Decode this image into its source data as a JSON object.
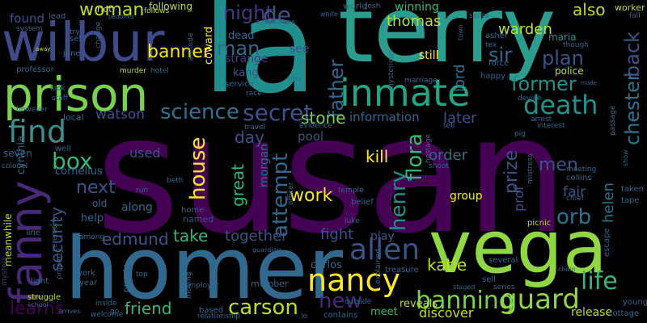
{
  "background": "#000000",
  "palette": {
    "purple": "#440154",
    "indigo": "#3b528b",
    "blue": "#31688e",
    "teal": "#21918c",
    "green": "#35b779",
    "lime": "#90d743",
    "yellow": "#fde725"
  },
  "words": [
    {
      "text": "susan",
      "color": "#440154"
    },
    {
      "text": "terry",
      "color": "#2a9d8f"
    },
    {
      "text": "la",
      "color": "#218f8d"
    },
    {
      "text": "homer",
      "color": "#31688e"
    },
    {
      "text": "vega",
      "color": "#90d743"
    },
    {
      "text": "wilbur",
      "color": "#3e4a89"
    },
    {
      "text": "prison",
      "color": "#7ad151"
    },
    {
      "text": "inmate",
      "color": "#21a585"
    },
    {
      "text": "fanny",
      "color": "#482878"
    },
    {
      "text": "nancy",
      "color": "#fde725"
    },
    {
      "text": "find",
      "color": "#3b8e8c"
    },
    {
      "text": "death",
      "color": "#21918c"
    },
    {
      "text": "secret",
      "color": "#3b528b"
    },
    {
      "text": "science",
      "color": "#2c728e"
    },
    {
      "text": "allen",
      "color": "#3b528b"
    },
    {
      "text": "banning",
      "color": "#7ad151"
    },
    {
      "text": "guard",
      "color": "#90d743"
    },
    {
      "text": "life",
      "color": "#35b779"
    },
    {
      "text": "carson",
      "color": "#bddf26"
    },
    {
      "text": "house",
      "color": "#fde725"
    },
    {
      "text": "box",
      "color": "#35b779"
    },
    {
      "text": "orb",
      "color": "#2c728e"
    },
    {
      "text": "attempt",
      "color": "#31688e"
    },
    {
      "text": "henry",
      "color": "#21918c"
    },
    {
      "text": "flora",
      "color": "#35b779"
    },
    {
      "text": "chester",
      "color": "#2c728e"
    },
    {
      "text": "back",
      "color": "#3b528b"
    },
    {
      "text": "man",
      "color": "#31688e"
    },
    {
      "text": "night",
      "color": "#443983"
    },
    {
      "text": "de",
      "color": "#3b528b"
    },
    {
      "text": "banner",
      "color": "#fde725"
    },
    {
      "text": "woman",
      "color": "#bddf26"
    },
    {
      "text": "father",
      "color": "#31688e"
    },
    {
      "text": "former",
      "color": "#21918c"
    },
    {
      "text": "plan",
      "color": "#3b528b"
    },
    {
      "text": "sir",
      "color": "#31688e"
    },
    {
      "text": "also",
      "color": "#bddf26"
    },
    {
      "text": "warden",
      "color": "#bddf26"
    },
    {
      "text": "thomas",
      "color": "#bddf26"
    },
    {
      "text": "winning",
      "color": "#35b779"
    },
    {
      "text": "maria",
      "color": "#21918c"
    },
    {
      "text": "worker",
      "color": "#bddf26"
    },
    {
      "text": "helen",
      "color": "#2c728e"
    },
    {
      "text": "learns",
      "color": "#440154"
    },
    {
      "text": "edmund",
      "color": "#3b528b"
    },
    {
      "text": "take",
      "color": "#35b779"
    },
    {
      "text": "together",
      "color": "#3b528b"
    },
    {
      "text": "friend",
      "color": "#35b779"
    },
    {
      "text": "next",
      "color": "#3b528b"
    },
    {
      "text": "security",
      "color": "#3b528b"
    },
    {
      "text": "work",
      "color": "#fde725"
    },
    {
      "text": "fight",
      "color": "#3b528b"
    },
    {
      "text": "new",
      "color": "#482878"
    },
    {
      "text": "katie",
      "color": "#bddf26"
    },
    {
      "text": "prize",
      "color": "#3b528b"
    },
    {
      "text": "kill",
      "color": "#fde725"
    },
    {
      "text": "order",
      "color": "#31688e"
    },
    {
      "text": "men",
      "color": "#3b528b"
    },
    {
      "text": "great",
      "color": "#35b779"
    },
    {
      "text": "stone",
      "color": "#7ad151"
    },
    {
      "text": "information",
      "color": "#31688e"
    },
    {
      "text": "later",
      "color": "#3b528b"
    },
    {
      "text": "watson",
      "color": "#3b528b"
    },
    {
      "text": "day",
      "color": "#3b528b"
    },
    {
      "text": "used",
      "color": "#3b528b"
    },
    {
      "text": "pool",
      "color": "#3b528b"
    },
    {
      "text": "fair",
      "color": "#3b528b"
    },
    {
      "text": "prof",
      "color": "#3b528b"
    },
    {
      "text": "group",
      "color": "#fde725"
    },
    {
      "text": "play",
      "color": "#3b528b"
    },
    {
      "text": "found",
      "color": "#3b528b"
    },
    {
      "text": "lord",
      "color": "#2c728e"
    },
    {
      "text": "still",
      "color": "#fde725"
    },
    {
      "text": "dead",
      "color": "#31688e"
    },
    {
      "text": "strange",
      "color": "#443983"
    },
    {
      "text": "see",
      "color": "#3b528b"
    },
    {
      "text": "kang",
      "color": "#3b528b"
    },
    {
      "text": "coward",
      "color": "#fde725"
    },
    {
      "text": "cornelius",
      "color": "#31688e"
    },
    {
      "text": "cynthia",
      "color": "#31688e"
    },
    {
      "text": "morgan",
      "color": "#2c728e"
    },
    {
      "text": "along",
      "color": "#31688e"
    },
    {
      "text": "named",
      "color": "#3b528b"
    },
    {
      "text": "help",
      "color": "#31688e"
    },
    {
      "text": "old",
      "color": "#31688e"
    },
    {
      "text": "seven",
      "color": "#31688e"
    },
    {
      "text": "following",
      "color": "#bddf26"
    },
    {
      "text": "riot",
      "color": "#bddf26"
    },
    {
      "text": "lead",
      "color": "#31688e"
    },
    {
      "text": "system",
      "color": "#31688e"
    },
    {
      "text": "professor",
      "color": "#31688e"
    },
    {
      "text": "murder",
      "color": "#bddf26"
    },
    {
      "text": "hotel",
      "color": "#31688e"
    },
    {
      "text": "june",
      "color": "#31688e"
    },
    {
      "text": "set",
      "color": "#31688e"
    },
    {
      "text": "try",
      "color": "#31688e"
    },
    {
      "text": "local",
      "color": "#31688e"
    },
    {
      "text": "well",
      "color": "#31688e"
    },
    {
      "text": "meanwhile",
      "color": "#bddf26"
    },
    {
      "text": "mystery",
      "color": "#443983"
    },
    {
      "text": "light",
      "color": "#31688e"
    },
    {
      "text": "struggle",
      "color": "#bddf26"
    },
    {
      "text": "line",
      "color": "#31688e"
    },
    {
      "text": "among",
      "color": "#31688e"
    },
    {
      "text": "york",
      "color": "#31688e"
    },
    {
      "text": "year",
      "color": "#31688e"
    },
    {
      "text": "private",
      "color": "#31688e"
    },
    {
      "text": "inside",
      "color": "#31688e"
    },
    {
      "text": "welcome",
      "color": "#31688e"
    },
    {
      "text": "moving",
      "color": "#31688e"
    },
    {
      "text": "based",
      "color": "#31688e"
    },
    {
      "text": "relationship",
      "color": "#31688e"
    },
    {
      "text": "member",
      "color": "#31688e"
    },
    {
      "text": "carlos",
      "color": "#31688e"
    },
    {
      "text": "treasure",
      "color": "#31688e"
    },
    {
      "text": "meet",
      "color": "#35b779"
    },
    {
      "text": "reveals",
      "color": "#bddf26"
    },
    {
      "text": "discover",
      "color": "#bddf26"
    },
    {
      "text": "contains",
      "color": "#31688e"
    },
    {
      "text": "lo",
      "color": "#31688e"
    },
    {
      "text": "sell",
      "color": "#31688e"
    },
    {
      "text": "series",
      "color": "#31688e"
    },
    {
      "text": "several",
      "color": "#31688e"
    },
    {
      "text": "release",
      "color": "#bddf26"
    },
    {
      "text": "cottage",
      "color": "#31688e"
    },
    {
      "text": "young",
      "color": "#31688e"
    },
    {
      "text": "escape",
      "color": "#31688e"
    },
    {
      "text": "taken",
      "color": "#31688e"
    },
    {
      "text": "tape",
      "color": "#31688e"
    },
    {
      "text": "collins",
      "color": "#31688e"
    },
    {
      "text": "picnic",
      "color": "#bddf26"
    },
    {
      "text": "belief",
      "color": "#31688e"
    },
    {
      "text": "luke",
      "color": "#31688e"
    },
    {
      "text": "temple",
      "color": "#31688e"
    },
    {
      "text": "shoot",
      "color": "#31688e"
    },
    {
      "text": "officer",
      "color": "#31688e"
    },
    {
      "text": "beth",
      "color": "#31688e"
    },
    {
      "text": "run",
      "color": "#31688e"
    },
    {
      "text": "home",
      "color": "#31688e"
    },
    {
      "text": "chief",
      "color": "#31688e"
    },
    {
      "text": "arrest",
      "color": "#31688e"
    },
    {
      "text": "passage",
      "color": "#31688e"
    },
    {
      "text": "race",
      "color": "#31688e"
    },
    {
      "text": "service",
      "color": "#31688e"
    },
    {
      "text": "marriage",
      "color": "#31688e"
    },
    {
      "text": "happy",
      "color": "#31688e"
    },
    {
      "text": "police",
      "color": "#bddf26"
    },
    {
      "text": "force",
      "color": "#31688e"
    },
    {
      "text": "asher",
      "color": "#31688e"
    },
    {
      "text": "tex",
      "color": "#31688e"
    },
    {
      "text": "world",
      "color": "#31688e"
    },
    {
      "text": "josh",
      "color": "#31688e"
    },
    {
      "text": "santa",
      "color": "#31688e"
    },
    {
      "text": "fall",
      "color": "#31688e"
    },
    {
      "text": "announces",
      "color": "#31688e"
    },
    {
      "text": "white",
      "color": "#31688e"
    },
    {
      "text": "follows",
      "color": "#bddf26"
    },
    {
      "text": "travel",
      "color": "#31688e"
    },
    {
      "text": "evidence",
      "color": "#31688e"
    },
    {
      "text": "tell",
      "color": "#31688e"
    },
    {
      "text": "interest",
      "color": "#31688e"
    },
    {
      "text": "mysterious",
      "color": "#31688e"
    },
    {
      "text": "copy",
      "color": "#31688e"
    },
    {
      "text": "staff",
      "color": "#31688e"
    },
    {
      "text": "however",
      "color": "#31688e"
    },
    {
      "text": "look",
      "color": "#31688e"
    },
    {
      "text": "ceremony",
      "color": "#31688e"
    },
    {
      "text": "property",
      "color": "#31688e"
    },
    {
      "text": "colonel",
      "color": "#31688e"
    },
    {
      "text": "school",
      "color": "#31688e"
    },
    {
      "text": "arrives",
      "color": "#31688e"
    },
    {
      "text": "guardian",
      "color": "#31688e"
    },
    {
      "text": "employer",
      "color": "#31688e"
    },
    {
      "text": "top",
      "color": "#31688e"
    },
    {
      "text": "outside",
      "color": "#31688e"
    },
    {
      "text": "explained",
      "color": "#31688e"
    },
    {
      "text": "hostage",
      "color": "#31688e"
    },
    {
      "text": "mistress",
      "color": "#31688e"
    },
    {
      "text": "meeting",
      "color": "#31688e"
    },
    {
      "text": "pig",
      "color": "#31688e"
    },
    {
      "text": "device",
      "color": "#31688e"
    },
    {
      "text": "made",
      "color": "#31688e"
    },
    {
      "text": "though",
      "color": "#31688e"
    },
    {
      "text": "town",
      "color": "#31688e"
    },
    {
      "text": "change",
      "color": "#31688e"
    },
    {
      "text": "attitude",
      "color": "#31688e"
    },
    {
      "text": "performs",
      "color": "#31688e"
    },
    {
      "text": "away",
      "color": "#bddf26"
    },
    {
      "text": "chain",
      "color": "#31688e"
    },
    {
      "text": "staged",
      "color": "#31688e"
    },
    {
      "text": "show",
      "color": "#31688e"
    },
    {
      "text": "go",
      "color": "#31688e"
    }
  ]
}
